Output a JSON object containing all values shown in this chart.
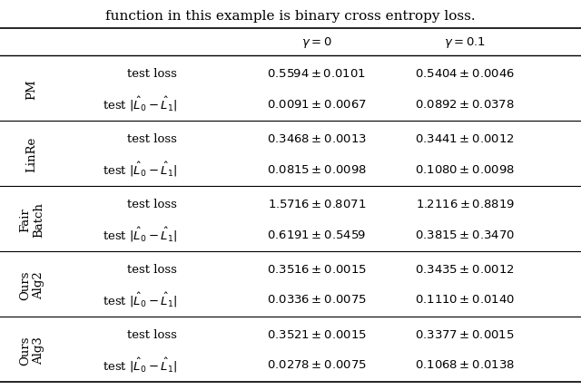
{
  "col_headers": [
    "$\\gamma = 0$",
    "$\\gamma = 0.1$"
  ],
  "rows": [
    {
      "method": "PM",
      "row1_label": "test loss",
      "row2_label": "test $|\\hat{L}_0 - \\hat{L}_1|$",
      "row1_g0": "$0.5594 \\pm 0.0101$",
      "row1_g1": "$0.5404 \\pm 0.0046$",
      "row2_g0": "$0.0091 \\pm 0.0067$",
      "row2_g1": "$0.0892 \\pm 0.0378$"
    },
    {
      "method": "LinRe",
      "row1_label": "test loss",
      "row2_label": "test $|\\hat{L}_0 - \\hat{L}_1|$",
      "row1_g0": "$0.3468 \\pm 0.0013$",
      "row1_g1": "$0.3441 \\pm 0.0012$",
      "row2_g0": "$0.0815 \\pm 0.0098$",
      "row2_g1": "$0.1080 \\pm 0.0098$"
    },
    {
      "method": "Fair\nBatch",
      "row1_label": "test loss",
      "row2_label": "test $|\\hat{L}_0 - \\hat{L}_1|$",
      "row1_g0": "$1.5716 \\pm 0.8071$",
      "row1_g1": "$1.2116 \\pm 0.8819$",
      "row2_g0": "$0.6191 \\pm 0.5459$",
      "row2_g1": "$0.3815 \\pm 0.3470$"
    },
    {
      "method": "Ours\nAlg2",
      "row1_label": "test loss",
      "row2_label": "test $|\\hat{L}_0 - \\hat{L}_1|$",
      "row1_g0": "$0.3516 \\pm 0.0015$",
      "row1_g1": "$0.3435 \\pm 0.0012$",
      "row2_g0": "$0.0336 \\pm 0.0075$",
      "row2_g1": "$0.1110 \\pm 0.0140$"
    },
    {
      "method": "Ours\nAlg3",
      "row1_label": "test loss",
      "row2_label": "test $|\\hat{L}_0 - \\hat{L}_1|$",
      "row1_g0": "$0.3521 \\pm 0.0015$",
      "row1_g1": "$0.3377 \\pm 0.0015$",
      "row2_g0": "$0.0278 \\pm 0.0075$",
      "row2_g1": "$0.1068 \\pm 0.0138$"
    }
  ],
  "bg_color": "white",
  "font_size": 9.5,
  "header_font_size": 9.5,
  "title_text": "function in this example is binary cross entropy loss.",
  "title_fontsize": 11
}
